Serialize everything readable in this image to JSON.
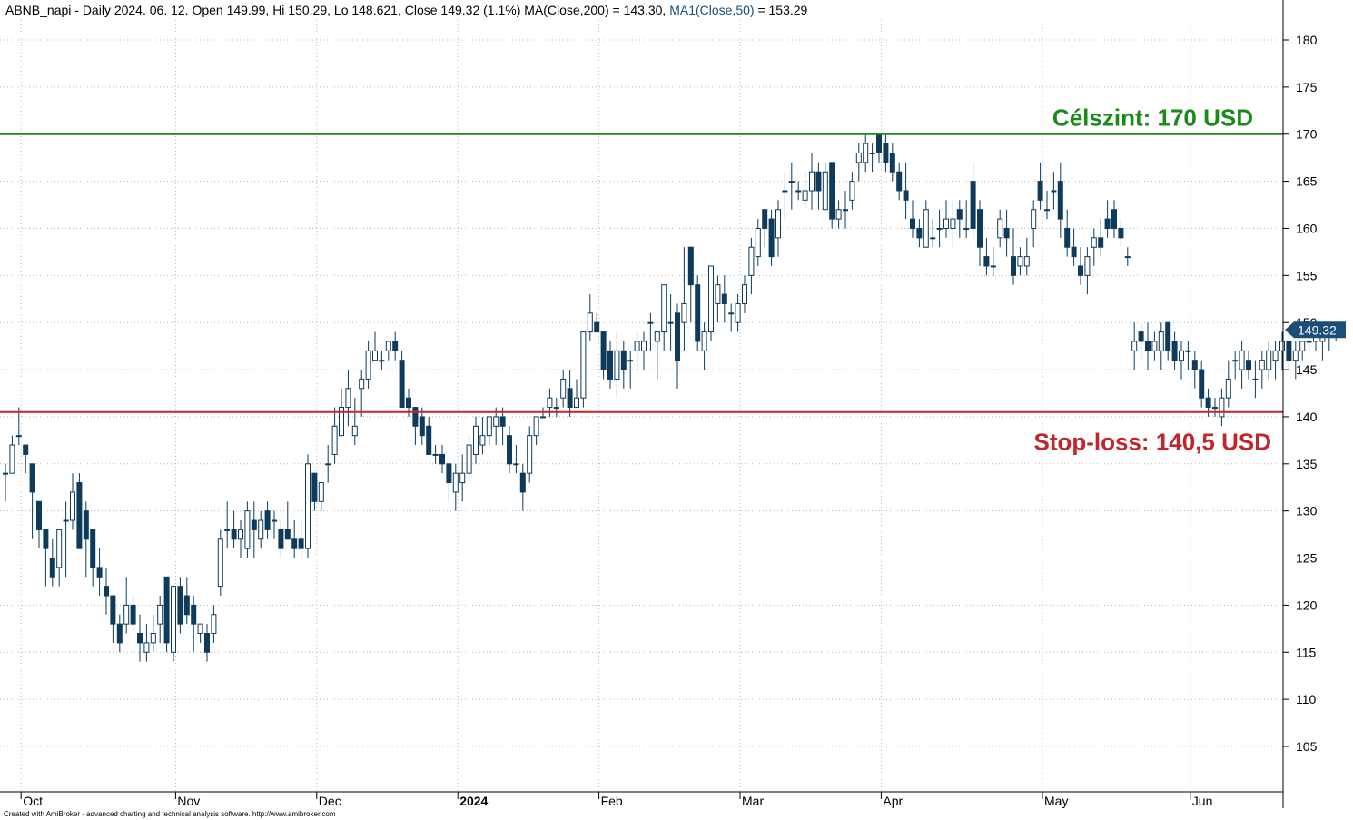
{
  "header": {
    "prefix": "ABNB_napi - Daily 2024. 06. 12. Open 149.99, Hi 150.29, Lo 148.621, Close 149.32 (1.1%) MA(Close,200) = 143.30,",
    "ma1_label": "MA1(Close,50)",
    "ma1_value": " = 153.29",
    "ma1_color": "#1a4e7a"
  },
  "footer": {
    "credit": "Created with AmiBroker - advanced charting and technical analysis software. http://www.amibroker.com"
  },
  "colors": {
    "down_fill": "#0e3a5c",
    "up_fill": "#ffffff",
    "candle_stroke": "#0e3a5c",
    "target_line": "#1a8a1a",
    "stop_line": "#c0262b",
    "grid": "#b8b8b8",
    "last_price_bg": "#1b4f7a"
  },
  "chart_data": {
    "type": "candlestick",
    "ticker": "ABNB_napi",
    "ylim": [
      100,
      185
    ],
    "yticks": [
      105,
      110,
      115,
      120,
      125,
      130,
      135,
      140,
      145,
      150,
      155,
      160,
      165,
      170,
      175,
      180
    ],
    "months": [
      {
        "label": "Oct",
        "bar": 3,
        "bold": false
      },
      {
        "label": "Nov",
        "bar": 26,
        "bold": false
      },
      {
        "label": "Dec",
        "bar": 47,
        "bold": false
      },
      {
        "label": "2024",
        "bar": 68,
        "bold": true
      },
      {
        "label": "Feb",
        "bar": 89,
        "bold": false
      },
      {
        "label": "Mar",
        "bar": 110,
        "bold": false
      },
      {
        "label": "Apr",
        "bar": 131,
        "bold": false
      },
      {
        "label": "May",
        "bar": 155,
        "bold": false
      },
      {
        "label": "Jun",
        "bar": 177,
        "bold": false
      }
    ],
    "target": {
      "value": 170,
      "label": "Célszint: 170 USD"
    },
    "stop": {
      "value": 140.5,
      "label": "Stop-loss: 140,5 USD"
    },
    "last_price": {
      "value": 149.32,
      "label": "149.32"
    },
    "candles": [
      [
        134,
        135,
        131,
        134
      ],
      [
        134,
        138,
        134,
        137
      ],
      [
        138,
        141,
        137,
        138
      ],
      [
        137,
        137,
        134,
        136
      ],
      [
        135,
        135,
        127,
        132
      ],
      [
        131,
        131,
        126,
        128
      ],
      [
        128,
        128,
        122,
        126
      ],
      [
        125,
        127,
        122,
        123
      ],
      [
        124,
        128,
        122,
        128
      ],
      [
        129,
        131,
        123,
        129
      ],
      [
        129,
        134,
        128,
        132
      ],
      [
        133,
        134,
        126,
        126
      ],
      [
        130,
        131,
        123,
        127
      ],
      [
        128,
        128,
        122,
        124
      ],
      [
        124,
        126,
        121,
        123
      ],
      [
        122,
        124,
        119,
        121
      ],
      [
        121,
        121,
        116,
        118
      ],
      [
        118,
        119,
        115,
        116
      ],
      [
        118,
        123,
        117,
        120
      ],
      [
        120,
        121,
        117,
        118
      ],
      [
        117,
        119,
        114,
        116
      ],
      [
        115,
        118,
        114,
        116
      ],
      [
        116,
        119,
        115,
        117
      ],
      [
        118,
        121,
        116,
        120
      ],
      [
        123,
        123,
        115,
        116
      ],
      [
        115,
        122,
        114,
        122
      ],
      [
        122,
        123,
        117,
        118
      ],
      [
        121,
        123,
        118,
        119
      ],
      [
        120,
        121,
        115,
        118
      ],
      [
        117,
        118,
        116,
        118
      ],
      [
        117,
        118,
        114,
        115
      ],
      [
        117,
        120,
        116,
        119
      ],
      [
        122,
        128,
        121,
        127
      ],
      [
        128,
        131,
        126,
        128
      ],
      [
        128,
        130,
        126,
        127
      ],
      [
        127,
        129,
        125,
        128
      ],
      [
        126,
        131,
        125,
        130
      ],
      [
        129,
        131,
        125,
        128
      ],
      [
        127,
        130,
        126,
        129
      ],
      [
        130,
        131,
        127,
        128
      ],
      [
        129,
        130,
        127,
        129
      ],
      [
        128,
        129,
        125,
        126
      ],
      [
        128,
        131,
        127,
        127
      ],
      [
        127,
        129,
        125,
        126
      ],
      [
        127,
        129,
        125,
        126
      ],
      [
        126,
        136,
        125,
        135
      ],
      [
        134,
        134,
        130,
        131
      ],
      [
        131,
        133,
        130,
        133
      ],
      [
        135,
        137,
        133,
        135
      ],
      [
        136,
        141,
        135,
        139
      ],
      [
        138,
        143,
        138,
        141
      ],
      [
        141,
        145,
        139,
        143
      ],
      [
        138,
        142,
        137,
        139
      ],
      [
        143,
        145,
        140,
        144
      ],
      [
        144,
        148,
        143,
        147
      ],
      [
        146,
        149,
        146,
        147
      ],
      [
        146,
        147,
        145,
        146
      ],
      [
        147,
        148,
        146,
        148
      ],
      [
        148,
        149,
        146,
        147
      ],
      [
        146,
        147,
        141,
        141
      ],
      [
        142,
        143,
        140,
        141
      ],
      [
        141,
        141,
        137,
        139
      ],
      [
        140,
        141,
        137,
        138
      ],
      [
        139,
        140,
        136,
        136
      ],
      [
        136,
        137,
        135,
        136
      ],
      [
        136,
        137,
        134,
        135
      ],
      [
        135,
        135,
        131,
        133
      ],
      [
        132,
        135,
        130,
        134
      ],
      [
        133,
        136,
        131,
        134
      ],
      [
        134,
        138,
        133,
        137
      ],
      [
        136,
        140,
        135,
        139
      ],
      [
        137,
        140,
        136,
        138
      ],
      [
        138,
        140,
        137,
        140
      ],
      [
        139,
        141,
        137,
        140
      ],
      [
        140,
        141,
        137,
        139
      ],
      [
        138,
        139,
        134,
        135
      ],
      [
        135,
        137,
        134,
        135
      ],
      [
        134,
        135,
        130,
        132
      ],
      [
        134,
        139,
        133,
        138
      ],
      [
        138,
        140,
        137,
        140
      ],
      [
        140,
        141,
        140,
        140
      ],
      [
        141,
        143,
        140,
        142
      ],
      [
        141,
        142,
        140,
        141
      ],
      [
        142,
        145,
        141,
        144
      ],
      [
        143,
        145,
        140,
        141
      ],
      [
        141,
        144,
        141,
        142
      ],
      [
        142,
        149,
        141,
        149
      ],
      [
        149,
        153,
        148,
        151
      ],
      [
        150,
        151,
        149,
        149
      ],
      [
        149,
        149,
        144,
        145
      ],
      [
        147,
        148,
        143,
        144
      ],
      [
        144,
        149,
        142,
        147
      ],
      [
        147,
        148,
        143,
        145
      ],
      [
        146,
        147,
        143,
        146
      ],
      [
        147,
        149,
        145,
        148
      ],
      [
        147,
        149,
        145,
        148
      ],
      [
        150,
        151,
        147,
        150
      ],
      [
        148,
        149,
        144,
        149
      ],
      [
        149,
        154,
        147,
        154
      ],
      [
        150,
        153,
        147,
        150
      ],
      [
        151,
        152,
        143,
        146
      ],
      [
        150,
        158,
        147,
        152
      ],
      [
        158,
        158,
        150,
        154
      ],
      [
        154,
        155,
        147,
        148
      ],
      [
        147,
        150,
        145,
        149
      ],
      [
        149,
        156,
        148,
        156
      ],
      [
        152,
        155,
        150,
        154
      ],
      [
        153,
        155,
        150,
        152
      ],
      [
        151,
        152,
        149,
        151
      ],
      [
        150,
        153,
        149,
        152
      ],
      [
        152,
        155,
        151,
        154
      ],
      [
        155,
        159,
        153,
        158
      ],
      [
        157,
        161,
        156,
        160
      ],
      [
        162,
        162,
        158,
        160
      ],
      [
        161,
        162,
        156,
        157
      ],
      [
        159,
        163,
        157,
        162
      ],
      [
        164,
        166,
        161,
        164
      ],
      [
        165,
        167,
        162,
        165
      ],
      [
        164,
        165,
        163,
        164
      ],
      [
        163,
        166,
        162,
        164
      ],
      [
        164,
        168,
        162,
        166
      ],
      [
        166,
        167,
        162,
        164
      ],
      [
        162,
        167,
        162,
        166
      ],
      [
        167,
        167,
        160,
        161
      ],
      [
        161,
        163,
        160,
        162
      ],
      [
        162,
        164,
        160,
        162
      ],
      [
        163,
        166,
        162,
        165
      ],
      [
        167,
        169,
        165,
        168
      ],
      [
        167,
        170,
        166,
        169
      ],
      [
        168,
        169,
        166,
        168
      ],
      [
        170,
        170,
        167,
        168
      ],
      [
        169,
        170,
        166,
        167
      ],
      [
        168,
        169,
        165,
        166
      ],
      [
        166,
        167,
        163,
        164
      ],
      [
        164,
        167,
        161,
        163
      ],
      [
        161,
        163,
        159,
        160
      ],
      [
        160,
        161,
        158,
        159
      ],
      [
        158,
        163,
        158,
        162
      ],
      [
        159,
        161,
        158,
        159
      ],
      [
        160,
        162,
        158,
        160
      ],
      [
        160,
        163,
        159,
        161
      ],
      [
        160,
        163,
        158,
        161
      ],
      [
        162,
        163,
        159,
        161
      ],
      [
        160,
        163,
        159,
        160
      ],
      [
        165,
        167,
        159,
        160
      ],
      [
        162,
        163,
        156,
        158
      ],
      [
        157,
        159,
        155,
        156
      ],
      [
        156,
        158,
        155,
        156
      ],
      [
        159,
        162,
        158,
        161
      ],
      [
        160,
        162,
        157,
        159
      ],
      [
        157,
        160,
        154,
        155
      ],
      [
        156,
        158,
        155,
        157
      ],
      [
        156,
        159,
        155,
        157
      ],
      [
        160,
        163,
        158,
        162
      ],
      [
        165,
        167,
        162,
        163
      ],
      [
        162,
        164,
        161,
        162
      ],
      [
        164,
        166,
        162,
        164
      ],
      [
        165,
        167,
        159,
        161
      ],
      [
        160,
        162,
        157,
        158
      ],
      [
        158,
        160,
        156,
        157
      ],
      [
        156,
        158,
        154,
        155
      ],
      [
        155,
        158,
        153,
        157
      ],
      [
        158,
        160,
        156,
        159
      ],
      [
        159,
        161,
        157,
        158
      ],
      [
        161,
        163,
        159,
        160
      ],
      [
        162,
        163,
        159,
        160
      ],
      [
        160,
        161,
        158,
        159
      ],
      [
        157,
        158,
        156,
        157
      ],
      [
        147,
        150,
        145,
        148
      ],
      [
        149,
        150,
        146,
        148
      ],
      [
        148,
        150,
        145,
        147
      ],
      [
        147,
        149,
        146,
        148
      ],
      [
        147,
        150,
        145,
        149
      ],
      [
        150,
        150,
        146,
        147
      ],
      [
        148,
        149,
        145,
        146
      ],
      [
        146,
        148,
        144,
        147
      ],
      [
        147,
        148,
        145,
        147
      ],
      [
        146,
        147,
        143,
        145
      ],
      [
        145,
        146,
        141,
        142
      ],
      [
        142,
        143,
        140,
        141
      ],
      [
        141,
        142,
        140,
        141
      ],
      [
        140,
        143,
        139,
        142
      ],
      [
        142,
        146,
        141,
        144
      ],
      [
        146,
        147,
        144,
        146
      ],
      [
        145,
        148,
        143,
        147
      ],
      [
        146,
        147,
        144,
        145
      ],
      [
        144,
        146,
        142,
        144
      ],
      [
        145,
        147,
        143,
        146
      ],
      [
        145,
        148,
        144,
        147
      ],
      [
        146,
        148,
        144,
        147
      ],
      [
        147,
        149,
        145,
        148
      ],
      [
        148,
        149,
        145,
        146
      ],
      [
        146,
        148,
        144,
        147
      ],
      [
        147,
        148,
        146,
        148
      ],
      [
        148,
        149,
        147,
        148
      ],
      [
        148,
        150,
        147,
        149
      ],
      [
        148,
        150,
        146,
        149
      ],
      [
        149,
        150,
        147,
        149
      ],
      [
        150,
        150,
        148,
        149
      ]
    ]
  }
}
